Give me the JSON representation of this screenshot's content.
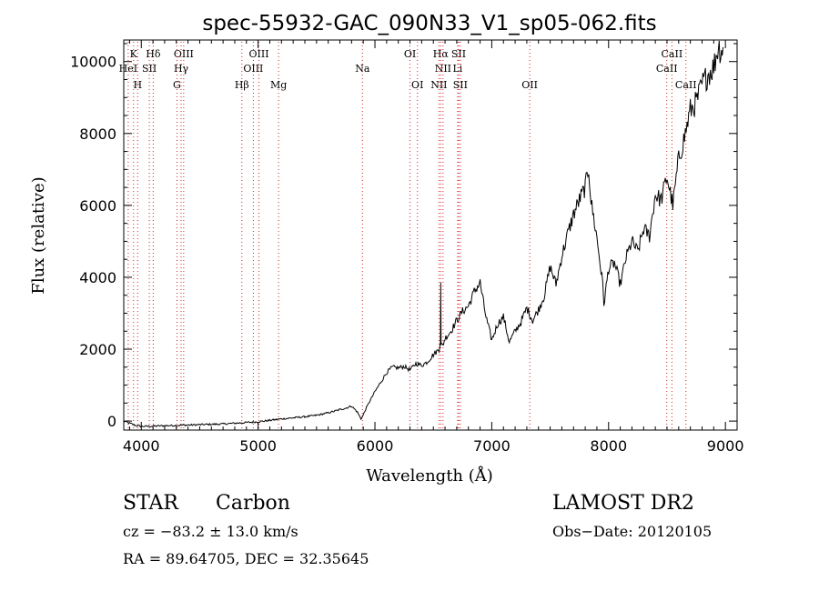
{
  "chart_data": {
    "type": "line",
    "title": "spec-55932-GAC_090N33_V1_sp05-062.fits",
    "xlabel": "Wavelength (Å)",
    "ylabel": "Flux (relative)",
    "xlim": [
      3850,
      9100
    ],
    "ylim": [
      -250,
      10600
    ],
    "xticks": [
      4000,
      5000,
      6000,
      7000,
      8000,
      9000
    ],
    "yticks": [
      0,
      2000,
      4000,
      6000,
      8000,
      10000
    ],
    "colors": {
      "spectrum": "#000000",
      "line_markers": "#d62020"
    },
    "series": [
      {
        "x": [
          3850,
          3900,
          3950,
          4000,
          4100,
          4200,
          4300,
          4400,
          4500,
          4600,
          4700,
          4800,
          4900,
          5000,
          5100,
          5200,
          5300,
          5400,
          5500,
          5600,
          5650,
          5700,
          5750,
          5800,
          5850,
          5880,
          5900,
          5920,
          5950,
          6000,
          6050,
          6100,
          6150,
          6200,
          6250,
          6300,
          6350,
          6400,
          6450,
          6500,
          6550,
          6560,
          6563,
          6566,
          6580,
          6600,
          6650,
          6700,
          6750,
          6800,
          6850,
          6900,
          6950,
          7000,
          7050,
          7100,
          7150,
          7200,
          7250,
          7300,
          7350,
          7400,
          7450,
          7500,
          7550,
          7600,
          7650,
          7700,
          7750,
          7800,
          7830,
          7850,
          7900,
          7950,
          7960,
          8000,
          8050,
          8100,
          8150,
          8200,
          8250,
          8300,
          8350,
          8400,
          8450,
          8500,
          8550,
          8600,
          8650,
          8700,
          8750,
          8800,
          8850,
          8900,
          8940,
          8960,
          8980
        ],
        "y": [
          0,
          -60,
          -120,
          -150,
          -140,
          -130,
          -120,
          -110,
          -100,
          -90,
          -80,
          -60,
          -40,
          -20,
          20,
          60,
          90,
          120,
          160,
          230,
          270,
          320,
          360,
          420,
          250,
          60,
          170,
          320,
          520,
          820,
          1080,
          1350,
          1500,
          1480,
          1520,
          1420,
          1600,
          1550,
          1650,
          1850,
          2000,
          2250,
          3950,
          2100,
          2100,
          2300,
          2500,
          2800,
          3050,
          3200,
          3600,
          3850,
          2900,
          2250,
          2700,
          2900,
          2200,
          2500,
          2750,
          3150,
          2800,
          3100,
          3500,
          4300,
          3800,
          4600,
          5200,
          5750,
          6150,
          6500,
          7050,
          6100,
          5100,
          3800,
          3250,
          4250,
          4400,
          3800,
          4550,
          5000,
          4700,
          5350,
          5150,
          6300,
          6150,
          6800,
          6000,
          7300,
          7900,
          8650,
          8850,
          9350,
          9650,
          9850,
          10450,
          10300,
          10400
        ]
      }
    ],
    "line_markers": [
      {
        "label": "K",
        "x": 3934,
        "row": 0
      },
      {
        "label": "HeI",
        "x": 3888,
        "row": 1
      },
      {
        "label": "H",
        "x": 3969,
        "row": 2
      },
      {
        "label": "Hδ",
        "x": 4102,
        "row": 0
      },
      {
        "label": "SII",
        "x": 4069,
        "row": 1
      },
      {
        "label": "OIII",
        "x": 4363,
        "row": 0
      },
      {
        "label": "Hγ",
        "x": 4341,
        "row": 1
      },
      {
        "label": "G",
        "x": 4305,
        "row": 2
      },
      {
        "label": "OIII",
        "x": 5007,
        "row": 0
      },
      {
        "label": "OIII",
        "x": 4959,
        "row": 1
      },
      {
        "label": "Hβ",
        "x": 4861,
        "row": 2
      },
      {
        "label": "Mg",
        "x": 5175,
        "row": 2
      },
      {
        "label": "Na",
        "x": 5893,
        "row": 1
      },
      {
        "label": "OI",
        "x": 6300,
        "row": 0
      },
      {
        "label": "OI",
        "x": 6364,
        "row": 2
      },
      {
        "label": "Hα",
        "x": 6563,
        "row": 0
      },
      {
        "label": "SII",
        "x": 6716,
        "row": 0
      },
      {
        "label": "NII",
        "x": 6583,
        "row": 1
      },
      {
        "label": "Li",
        "x": 6708,
        "row": 1
      },
      {
        "label": "NII",
        "x": 6548,
        "row": 2
      },
      {
        "label": "SII",
        "x": 6731,
        "row": 2
      },
      {
        "label": "OII",
        "x": 7325,
        "row": 2
      },
      {
        "label": "CaII",
        "x": 8542,
        "row": 0
      },
      {
        "label": "CaII",
        "x": 8498,
        "row": 1
      },
      {
        "label": "CaII",
        "x": 8662,
        "row": 2
      }
    ]
  },
  "footer": {
    "object_type": "STAR",
    "subclass": "Carbon",
    "survey": "LAMOST DR2",
    "redshift": "cz = −83.2 ± 13.0 km/s",
    "obs_date": "Obs−Date: 20120105",
    "coords": "RA =  89.64705, DEC =  32.35645"
  }
}
